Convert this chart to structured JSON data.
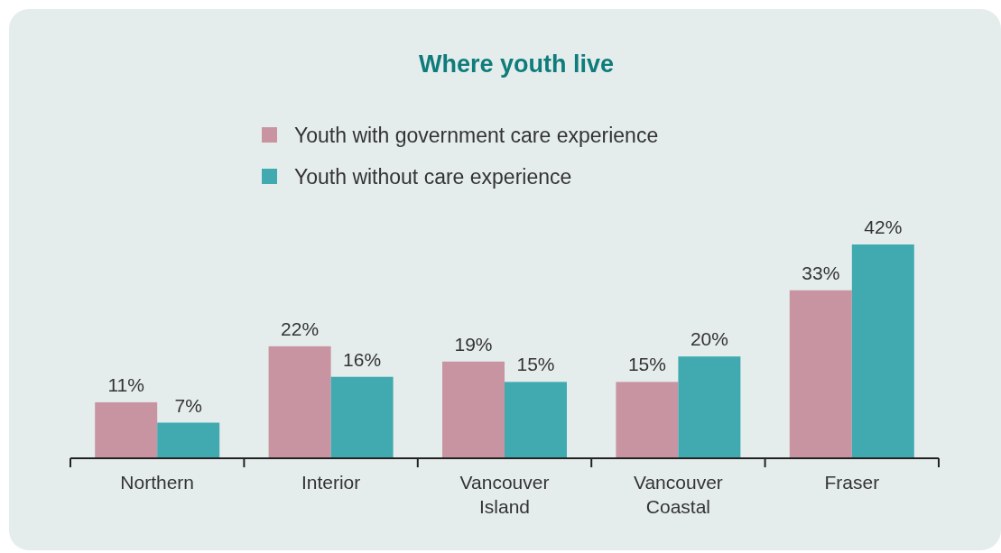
{
  "chart_data": {
    "type": "bar",
    "title": "Where youth live",
    "categories": [
      "Northern",
      "Interior",
      "Vancouver Island",
      "Vancouver Coastal",
      "Fraser"
    ],
    "series": [
      {
        "name": "Youth with government care experience",
        "color": "#c994a1",
        "values": [
          11,
          22,
          19,
          15,
          33
        ],
        "value_labels": [
          "11%",
          "22%",
          "19%",
          "15%",
          "33%"
        ]
      },
      {
        "name": "Youth without care experience",
        "color": "#41aab0",
        "values": [
          7,
          16,
          15,
          20,
          42
        ],
        "value_labels": [
          "7%",
          "16%",
          "15%",
          "20%",
          "42%"
        ]
      }
    ],
    "legend": "top"
  }
}
